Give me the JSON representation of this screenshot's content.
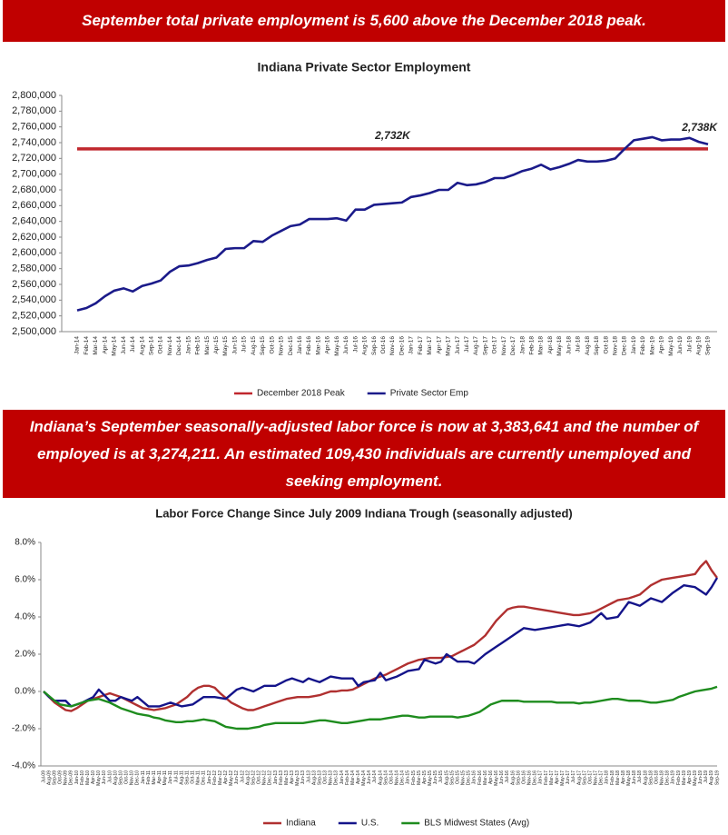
{
  "header": {
    "banner_top": "September total private employment is 5,600 above the December 2018 peak.",
    "banner_middle": "Indiana’s September seasonally-adjusted labor force is now at 3,383,641 and the number of employed is at 3,274,211. An estimated 109,430 individuals are currently unemployed and seeking employment."
  },
  "chart_data": [
    {
      "type": "line",
      "title": "Indiana Private Sector Employment",
      "categories": [
        "Jan-14",
        "Feb-14",
        "Mar-14",
        "Apr-14",
        "May-14",
        "Jun-14",
        "Jul-14",
        "Aug-14",
        "Sep-14",
        "Oct-14",
        "Nov-14",
        "Dec-14",
        "Jan-15",
        "Feb-15",
        "Mar-15",
        "Apr-15",
        "May-15",
        "Jun-15",
        "Jul-15",
        "Aug-15",
        "Sep-15",
        "Oct-15",
        "Nov-15",
        "Dec-15",
        "Jan-16",
        "Feb-16",
        "Mar-16",
        "Apr-16",
        "May-16",
        "Jun-16",
        "Jul-16",
        "Aug-16",
        "Sep-16",
        "Oct-16",
        "Nov-16",
        "Dec-16",
        "Jan-17",
        "Feb-17",
        "Mar-17",
        "Apr-17",
        "May-17",
        "Jun-17",
        "Jul-17",
        "Aug-17",
        "Sep-17",
        "Oct-17",
        "Nov-17",
        "Dec-17",
        "Jan-18",
        "Feb-18",
        "Mar-18",
        "Apr-18",
        "May-18",
        "Jun-18",
        "Jul-18",
        "Aug-18",
        "Sep-18",
        "Oct-18",
        "Nov-18",
        "Dec-18",
        "Jan-19",
        "Feb-19",
        "Mar-19",
        "Apr-19",
        "May-19",
        "Jun-19",
        "Jul-19",
        "Aug-19",
        "Sep-19"
      ],
      "series": [
        {
          "name": "Private Sector Emp",
          "color": "#1b1b8a",
          "values": [
            2527000,
            2530000,
            2536000,
            2545000,
            2552000,
            2555000,
            2551000,
            2558000,
            2561000,
            2565000,
            2576000,
            2583000,
            2584000,
            2587000,
            2591000,
            2594000,
            2605000,
            2606000,
            2606000,
            2615000,
            2614000,
            2622000,
            2628000,
            2634000,
            2636000,
            2643000,
            2643000,
            2643000,
            2644000,
            2641000,
            2655000,
            2655000,
            2661000,
            2662000,
            2663000,
            2664000,
            2671000,
            2673000,
            2676000,
            2680000,
            2680000,
            2689000,
            2686000,
            2687000,
            2690000,
            2695000,
            2695000,
            2699000,
            2704000,
            2707000,
            2712000,
            2706000,
            2709000,
            2713000,
            2718000,
            2716000,
            2716000,
            2717000,
            2720000,
            2732000,
            2743000,
            2745000,
            2747000,
            2743000,
            2744000,
            2744000,
            2746000,
            2741000,
            2738000
          ]
        }
      ],
      "reference_lines": [
        {
          "name": "December 2018 Peak",
          "value": 2732000,
          "label": "2,732K",
          "color": "#c0272d"
        }
      ],
      "annotations": [
        {
          "text": "2,738K",
          "value": 2738000
        }
      ],
      "ylim": [
        2500000,
        2800000
      ],
      "yticks": [
        {
          "value": 2500000,
          "label": "2,500,000"
        },
        {
          "value": 2520000,
          "label": "2,520,000"
        },
        {
          "value": 2540000,
          "label": "2,540,000"
        },
        {
          "value": 2560000,
          "label": "2,560,000"
        },
        {
          "value": 2580000,
          "label": "2,580,000"
        },
        {
          "value": 2600000,
          "label": "2,600,000"
        },
        {
          "value": 2620000,
          "label": "2,620,000"
        },
        {
          "value": 2640000,
          "label": "2,640,000"
        },
        {
          "value": 2660000,
          "label": "2,660,000"
        },
        {
          "value": 2680000,
          "label": "2,680,000"
        },
        {
          "value": 2700000,
          "label": "2,700,000"
        },
        {
          "value": 2720000,
          "label": "2,720,000"
        },
        {
          "value": 2740000,
          "label": "2,740,000"
        },
        {
          "value": 2760000,
          "label": "2,760,000"
        },
        {
          "value": 2780000,
          "label": "2,780,000"
        },
        {
          "value": 2800000,
          "label": "2,800,000"
        }
      ],
      "grid": false
    },
    {
      "type": "line",
      "title": "Labor Force Change Since July 2009 Indiana Trough (seasonally adjusted)",
      "categories": [
        "Jul-09",
        "Aug-09",
        "Sep-09",
        "Oct-09",
        "Nov-09",
        "Dec-09",
        "Jan-10",
        "Feb-10",
        "Mar-10",
        "Apr-10",
        "May-10",
        "Jun-10",
        "Jul-10",
        "Aug-10",
        "Sep-10",
        "Oct-10",
        "Nov-10",
        "Dec-10",
        "Jan-11",
        "Feb-11",
        "Mar-11",
        "Apr-11",
        "May-11",
        "Jun-11",
        "Jul-11",
        "Aug-11",
        "Sep-11",
        "Oct-11",
        "Nov-11",
        "Dec-11",
        "Jan-12",
        "Feb-12",
        "Mar-12",
        "Apr-12",
        "May-12",
        "Jun-12",
        "Jul-12",
        "Aug-12",
        "Sep-12",
        "Oct-12",
        "Nov-12",
        "Dec-12",
        "Jan-13",
        "Feb-13",
        "Mar-13",
        "Apr-13",
        "May-13",
        "Jun-13",
        "Jul-13",
        "Aug-13",
        "Sep-13",
        "Oct-13",
        "Nov-13",
        "Dec-13",
        "Jan-14",
        "Feb-14",
        "Mar-14",
        "Apr-14",
        "May-14",
        "Jun-14",
        "Jul-14",
        "Aug-14",
        "Sep-14",
        "Oct-14",
        "Nov-14",
        "Dec-14",
        "Jan-15",
        "Feb-15",
        "Mar-15",
        "Apr-15",
        "May-15",
        "Jun-15",
        "Jul-15",
        "Aug-15",
        "Sep-15",
        "Oct-15",
        "Nov-15",
        "Dec-15",
        "Jan-16",
        "Feb-16",
        "Mar-16",
        "Apr-16",
        "May-16",
        "Jun-16",
        "Jul-16",
        "Aug-16",
        "Sep-16",
        "Oct-16",
        "Nov-16",
        "Dec-16",
        "Jan-17",
        "Feb-17",
        "Mar-17",
        "Apr-17",
        "May-17",
        "Jun-17",
        "Jul-17",
        "Aug-17",
        "Sep-17",
        "Oct-17",
        "Nov-17",
        "Dec-17",
        "Jan-18",
        "Feb-18",
        "Mar-18",
        "Apr-18",
        "May-18",
        "Jun-18",
        "Jul-18",
        "Aug-18",
        "Sep-18",
        "Oct-18",
        "Nov-18",
        "Dec-18",
        "Jan-19",
        "Feb-19",
        "Mar-19",
        "Apr-19",
        "May-19",
        "Jun-19",
        "Jul-19",
        "Aug-19",
        "Sep-19"
      ],
      "series": [
        {
          "name": "Indiana",
          "color": "#b03030",
          "values": [
            0.0,
            -0.3,
            -0.6,
            -0.8,
            -1.0,
            -1.05,
            -0.9,
            -0.7,
            -0.5,
            -0.4,
            -0.3,
            -0.2,
            -0.1,
            -0.2,
            -0.3,
            -0.45,
            -0.6,
            -0.75,
            -0.9,
            -0.95,
            -1.0,
            -0.95,
            -0.9,
            -0.8,
            -0.7,
            -0.5,
            -0.3,
            0.0,
            0.2,
            0.3,
            0.3,
            0.2,
            -0.1,
            -0.35,
            -0.6,
            -0.75,
            -0.9,
            -1.0,
            -1.0,
            -0.9,
            -0.8,
            -0.7,
            -0.6,
            -0.5,
            -0.4,
            -0.35,
            -0.3,
            -0.3,
            -0.3,
            -0.25,
            -0.2,
            -0.1,
            0.0,
            0.0,
            0.05,
            0.05,
            0.1,
            0.25,
            0.4,
            0.55,
            0.7,
            0.8,
            0.9,
            1.05,
            1.2,
            1.35,
            1.5,
            1.6,
            1.7,
            1.75,
            1.8,
            1.8,
            1.8,
            1.85,
            1.9,
            2.05,
            2.2,
            2.35,
            2.5,
            2.75,
            3.0,
            3.4,
            3.8,
            4.1,
            4.4,
            4.5,
            4.55,
            4.55,
            4.5,
            4.45,
            4.4,
            4.35,
            4.3,
            4.25,
            4.2,
            4.15,
            4.1,
            4.1,
            4.15,
            4.2,
            4.3,
            4.45,
            4.6,
            4.75,
            4.9,
            4.95,
            5.0,
            5.1,
            5.2,
            5.45,
            5.7,
            5.85,
            6.0,
            6.05,
            6.1,
            6.15,
            6.2,
            6.25,
            6.3,
            6.7,
            7.0,
            6.5,
            6.1
          ]
        },
        {
          "name": "U.S.",
          "color": "#14148a",
          "values": [
            0.0,
            -0.3,
            -0.5,
            -0.5,
            -0.5,
            -0.8,
            -0.7,
            -0.6,
            -0.45,
            -0.3,
            0.1,
            -0.2,
            -0.5,
            -0.5,
            -0.3,
            -0.4,
            -0.5,
            -0.3,
            -0.55,
            -0.8,
            -0.8,
            -0.8,
            -0.7,
            -0.6,
            -0.7,
            -0.8,
            -0.75,
            -0.7,
            -0.5,
            -0.3,
            -0.3,
            -0.3,
            -0.35,
            -0.4,
            -0.15,
            0.1,
            0.2,
            0.1,
            0.0,
            0.15,
            0.3,
            0.3,
            0.3,
            0.45,
            0.6,
            0.7,
            0.6,
            0.5,
            0.7,
            0.6,
            0.5,
            0.65,
            0.8,
            0.75,
            0.7,
            0.7,
            0.7,
            0.3,
            0.5,
            0.55,
            0.6,
            1.0,
            0.6,
            0.7,
            0.8,
            0.95,
            1.1,
            1.15,
            1.2,
            1.7,
            1.6,
            1.5,
            1.6,
            2.0,
            1.8,
            1.6,
            1.6,
            1.6,
            1.5,
            1.75,
            2.0,
            2.2,
            2.4,
            2.6,
            2.8,
            3.0,
            3.2,
            3.4,
            3.35,
            3.3,
            3.35,
            3.4,
            3.45,
            3.5,
            3.55,
            3.6,
            3.55,
            3.5,
            3.6,
            3.7,
            3.95,
            4.2,
            3.9,
            3.95,
            4.0,
            4.4,
            4.8,
            4.7,
            4.6,
            4.8,
            5.0,
            4.9,
            4.8,
            5.05,
            5.3,
            5.5,
            5.7,
            5.65,
            5.6,
            5.4,
            5.2,
            5.6,
            6.1
          ]
        },
        {
          "name": "BLS Midwest States (Avg)",
          "color": "#1e8c1e",
          "values": [
            0.0,
            -0.25,
            -0.5,
            -0.7,
            -0.75,
            -0.8,
            -0.7,
            -0.6,
            -0.5,
            -0.45,
            -0.4,
            -0.5,
            -0.6,
            -0.75,
            -0.9,
            -1.0,
            -1.1,
            -1.2,
            -1.25,
            -1.3,
            -1.4,
            -1.45,
            -1.55,
            -1.6,
            -1.65,
            -1.65,
            -1.6,
            -1.6,
            -1.55,
            -1.5,
            -1.55,
            -1.6,
            -1.75,
            -1.9,
            -1.95,
            -2.0,
            -2.0,
            -2.0,
            -1.95,
            -1.9,
            -1.8,
            -1.75,
            -1.7,
            -1.7,
            -1.7,
            -1.7,
            -1.7,
            -1.7,
            -1.65,
            -1.6,
            -1.55,
            -1.55,
            -1.6,
            -1.65,
            -1.7,
            -1.7,
            -1.65,
            -1.6,
            -1.55,
            -1.5,
            -1.5,
            -1.5,
            -1.45,
            -1.4,
            -1.35,
            -1.3,
            -1.3,
            -1.35,
            -1.4,
            -1.4,
            -1.35,
            -1.35,
            -1.35,
            -1.35,
            -1.35,
            -1.4,
            -1.35,
            -1.3,
            -1.2,
            -1.1,
            -0.9,
            -0.7,
            -0.6,
            -0.5,
            -0.5,
            -0.5,
            -0.5,
            -0.55,
            -0.55,
            -0.55,
            -0.55,
            -0.55,
            -0.55,
            -0.6,
            -0.6,
            -0.6,
            -0.6,
            -0.65,
            -0.6,
            -0.6,
            -0.55,
            -0.5,
            -0.45,
            -0.4,
            -0.4,
            -0.45,
            -0.5,
            -0.5,
            -0.5,
            -0.55,
            -0.6,
            -0.6,
            -0.55,
            -0.5,
            -0.45,
            -0.3,
            -0.2,
            -0.1,
            0.0,
            0.05,
            0.1,
            0.15,
            0.25
          ]
        }
      ],
      "ylim": [
        -4,
        8
      ],
      "yticks": [
        {
          "value": -4,
          "label": "-4.0%"
        },
        {
          "value": -2,
          "label": "-2.0%"
        },
        {
          "value": 0,
          "label": "0.0%"
        },
        {
          "value": 2,
          "label": "2.0%"
        },
        {
          "value": 4,
          "label": "4.0%"
        },
        {
          "value": 6,
          "label": "6.0%"
        },
        {
          "value": 8,
          "label": "8.0%"
        }
      ],
      "grid": false
    }
  ]
}
